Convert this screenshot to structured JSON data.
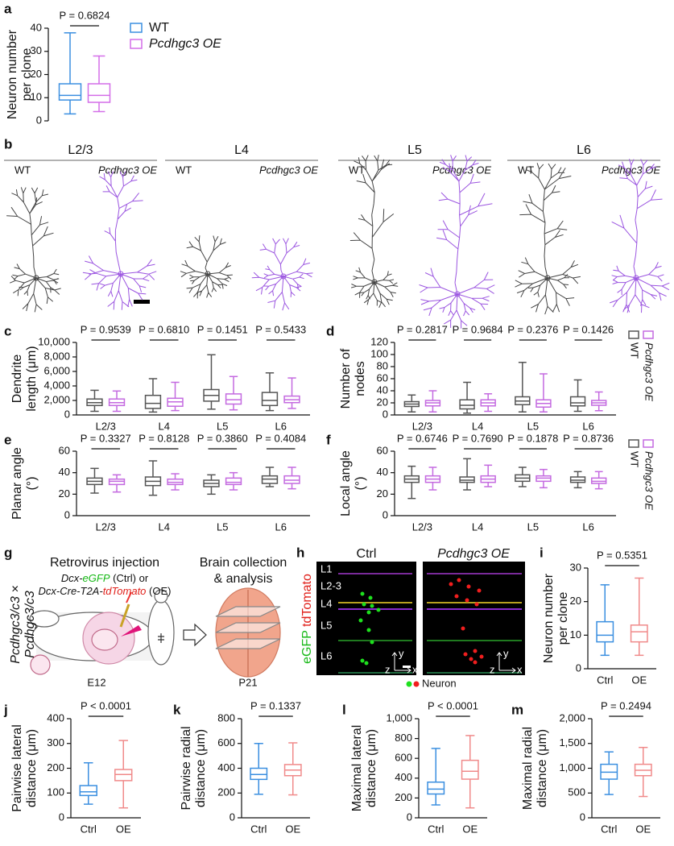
{
  "panels": [
    "a",
    "b",
    "c",
    "d",
    "e",
    "f",
    "g",
    "h",
    "i",
    "j",
    "k",
    "l",
    "m"
  ],
  "morphology": {
    "layers": [
      "L2/3",
      "L4",
      "L5",
      "L6"
    ],
    "groups": [
      "WT",
      "Pcdhgc3 OE"
    ]
  },
  "schematic": {
    "step1": "Retrovirus injection",
    "ctrl_line": [
      "Dcx-",
      "eGFP",
      " (Ctrl) or"
    ],
    "oe_line": [
      "Dcx-Cre-T2A-",
      "tdTomato",
      " (OE)"
    ],
    "step2": [
      "Brain collection",
      "& analysis"
    ],
    "cross": [
      "Pcdhgc3/c3 ×",
      "Pcdhgc3/c3"
    ],
    "ages": [
      "E12",
      "P21"
    ]
  },
  "imaging": {
    "conditions": [
      "Ctrl",
      "Pcdhgc3 OE"
    ],
    "layers": [
      "L1",
      "L2-3",
      "L4",
      "L5",
      "L6"
    ],
    "channels": [
      "eGFP",
      "tdTomato"
    ],
    "axes": [
      "y",
      "z",
      "x"
    ],
    "legend": "Neuron"
  },
  "chart_data": [
    {
      "type": "box",
      "ylabel": [
        "Neuron number",
        "per clone"
      ],
      "ylim": [
        0,
        40
      ],
      "yticks": [
        0,
        10,
        20,
        30,
        40
      ],
      "annotation": "P = 0.6824",
      "legend": true,
      "series": [
        {
          "name": "WT",
          "color": "#3b8fe0",
          "values": [
            3,
            9,
            11,
            16,
            38
          ]
        },
        {
          "name": "Pcdhgc3 OE",
          "color": "#d46ee8",
          "values": [
            4,
            8,
            11,
            16,
            28
          ]
        }
      ]
    },
    {
      "type": "box",
      "ylabel": [
        "Dendrite",
        "length (μm)"
      ],
      "categories": [
        "L2/3",
        "L4",
        "L5",
        "L6"
      ],
      "ylim": [
        0,
        10000
      ],
      "yticks": [
        0,
        {
          "value": 2000,
          "label": "2,000"
        },
        {
          "value": 4000,
          "label": "4,000"
        },
        {
          "value": 6000,
          "label": "6,000"
        },
        {
          "value": 8000,
          "label": "8,000"
        },
        {
          "value": 10000,
          "label": "10,000"
        }
      ],
      "annotations": [
        "P = 0.9539",
        "P = 0.6810",
        "P = 0.1451",
        "P = 0.5433"
      ],
      "legend": false,
      "series": [
        {
          "name": "WT",
          "color": "#555555",
          "values": [
            [
              500,
              1300,
              1700,
              2200,
              3400
            ],
            [
              400,
              900,
              1600,
              2700,
              5000
            ],
            [
              800,
              1900,
              2700,
              3500,
              8300
            ],
            [
              600,
              1300,
              2000,
              3100,
              5800
            ]
          ]
        },
        {
          "name": "Pcdhgc3 OE",
          "color": "#c46ae0",
          "values": [
            [
              500,
              1300,
              1700,
              2200,
              3300
            ],
            [
              600,
              1200,
              1800,
              2300,
              4500
            ],
            [
              700,
              1500,
              2100,
              2900,
              5300
            ],
            [
              900,
              1700,
              2100,
              2600,
              5100
            ]
          ]
        }
      ]
    },
    {
      "type": "box",
      "ylabel": [
        "Number of",
        "nodes"
      ],
      "categories": [
        "L2/3",
        "L4",
        "L5",
        "L6"
      ],
      "ylim": [
        0,
        120
      ],
      "yticks": [
        0,
        20,
        40,
        60,
        80,
        100,
        120
      ],
      "annotations": [
        "P = 0.2817",
        "P = 0.9684",
        "P = 0.2376",
        "P = 0.1426"
      ],
      "legend": true,
      "series": [
        {
          "name": "WT",
          "color": "#555555",
          "values": [
            [
              5,
              14,
              18,
              22,
              33
            ],
            [
              3,
              10,
              16,
              25,
              54
            ],
            [
              5,
              17,
              23,
              30,
              87
            ],
            [
              6,
              15,
              20,
              30,
              58
            ]
          ]
        },
        {
          "name": "Pcdhgc3 OE",
          "color": "#c46ae0",
          "values": [
            [
              5,
              15,
              20,
              24,
              40
            ],
            [
              6,
              15,
              20,
              25,
              35
            ],
            [
              5,
              13,
              19,
              25,
              68
            ],
            [
              7,
              16,
              20,
              24,
              38
            ]
          ]
        }
      ]
    },
    {
      "type": "box",
      "ylabel": [
        "Planar angle",
        "(°)"
      ],
      "categories": [
        "L2/3",
        "L4",
        "L5",
        "L6"
      ],
      "ylim": [
        0,
        60
      ],
      "yticks": [
        0,
        20,
        40,
        60
      ],
      "annotations": [
        "P = 0.3327",
        "P = 0.8128",
        "P = 0.3860",
        "P = 0.4084"
      ],
      "legend": false,
      "series": [
        {
          "name": "WT",
          "color": "#555555",
          "values": [
            [
              21,
              29,
              32,
              35,
              44
            ],
            [
              19,
              28,
              32,
              36,
              51
            ],
            [
              20,
              27,
              30,
              33,
              38
            ],
            [
              27,
              30,
              34,
              37,
              45
            ]
          ]
        },
        {
          "name": "Pcdhgc3 OE",
          "color": "#c46ae0",
          "values": [
            [
              22,
              29,
              32,
              34,
              38
            ],
            [
              24,
              29,
              31,
              34,
              39
            ],
            [
              24,
              29,
              31,
              35,
              40
            ],
            [
              25,
              30,
              33,
              37,
              45
            ]
          ]
        }
      ]
    },
    {
      "type": "box",
      "ylabel": [
        "Local angle",
        "(°)"
      ],
      "categories": [
        "L2/3",
        "L4",
        "L5",
        "L6"
      ],
      "ylim": [
        0,
        60
      ],
      "yticks": [
        0,
        20,
        40,
        60
      ],
      "annotations": [
        "P = 0.6746",
        "P = 0.7690",
        "P = 0.1878",
        "P = 0.8736"
      ],
      "legend": true,
      "series": [
        {
          "name": "WT",
          "color": "#555555",
          "values": [
            [
              16,
              31,
              34,
              37,
              46
            ],
            [
              24,
              31,
              33,
              36,
              53
            ],
            [
              27,
              32,
              35,
              38,
              45
            ],
            [
              26,
              31,
              33,
              36,
              41
            ]
          ]
        },
        {
          "name": "Pcdhgc3 OE",
          "color": "#c46ae0",
          "values": [
            [
              24,
              31,
              34,
              37,
              45
            ],
            [
              27,
              31,
              34,
              37,
              47
            ],
            [
              26,
              32,
              35,
              37,
              43
            ],
            [
              25,
              30,
              32,
              35,
              41
            ]
          ]
        }
      ]
    },
    {
      "type": "box",
      "ylabel": [
        "Neuron number",
        "per clone"
      ],
      "categories": [
        "Ctrl",
        "OE"
      ],
      "ylim": [
        0,
        30
      ],
      "yticks": [
        0,
        10,
        20,
        30
      ],
      "annotation": "P = 0.5351",
      "colors": [
        "#3b8fe0",
        "#f08a8a"
      ],
      "values": [
        [
          4,
          8,
          10,
          14,
          25
        ],
        [
          4,
          8,
          11,
          13,
          27
        ]
      ]
    },
    {
      "type": "box",
      "ylabel": [
        "Pairwise lateral",
        "distance (μm)"
      ],
      "categories": [
        "Ctrl",
        "OE"
      ],
      "ylim": [
        0,
        400
      ],
      "yticks": [
        0,
        100,
        200,
        300,
        400
      ],
      "annotation": "P < 0.0001",
      "colors": [
        "#3b8fe0",
        "#f08a8a"
      ],
      "values": [
        [
          55,
          90,
          105,
          130,
          222
        ],
        [
          40,
          150,
          175,
          195,
          312
        ]
      ]
    },
    {
      "type": "box",
      "ylabel": [
        "Pairwise radial",
        "distance (μm)"
      ],
      "categories": [
        "Ctrl",
        "OE"
      ],
      "ylim": [
        0,
        800
      ],
      "yticks": [
        0,
        200,
        400,
        600,
        800
      ],
      "annotation": "P = 0.1337",
      "colors": [
        "#3b8fe0",
        "#f08a8a"
      ],
      "values": [
        [
          190,
          310,
          350,
          400,
          600
        ],
        [
          185,
          340,
          385,
          430,
          605
        ]
      ]
    },
    {
      "type": "box",
      "ylabel": [
        "Maximal lateral",
        "distance (μm)"
      ],
      "categories": [
        "Ctrl",
        "OE"
      ],
      "ylim": [
        0,
        1000
      ],
      "yticks": [
        0,
        200,
        400,
        600,
        800,
        {
          "value": 1000,
          "label": "1,000"
        }
      ],
      "annotation": "P < 0.0001",
      "colors": [
        "#3b8fe0",
        "#f08a8a"
      ],
      "values": [
        [
          130,
          240,
          290,
          360,
          700
        ],
        [
          100,
          390,
          470,
          580,
          830
        ]
      ]
    },
    {
      "type": "box",
      "ylabel": [
        "Maximal radial",
        "distance (μm)"
      ],
      "categories": [
        "Ctrl",
        "OE"
      ],
      "ylim": [
        0,
        2000
      ],
      "yticks": [
        0,
        500,
        {
          "value": 1000,
          "label": "1,000"
        },
        {
          "value": 1500,
          "label": "1,500"
        },
        {
          "value": 2000,
          "label": "2,000"
        }
      ],
      "annotation": "P = 0.2494",
      "colors": [
        "#3b8fe0",
        "#f08a8a"
      ],
      "values": [
        [
          470,
          780,
          920,
          1080,
          1330
        ],
        [
          430,
          850,
          960,
          1080,
          1420
        ]
      ]
    }
  ]
}
